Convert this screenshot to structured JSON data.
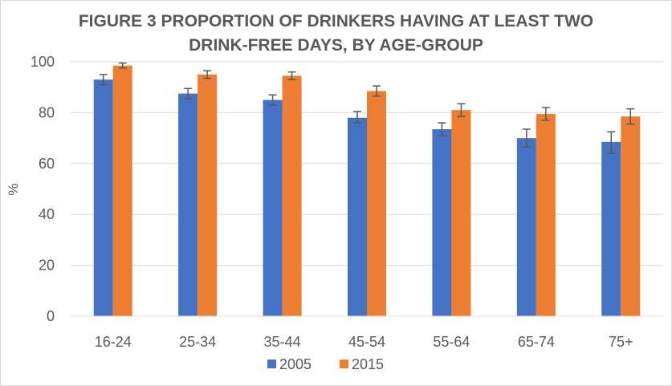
{
  "chart_data": {
    "type": "bar",
    "title_lines": [
      "FIGURE 3 PROPORTION OF DRINKERS HAVING AT LEAST TWO",
      "DRINK-FREE DAYS, BY AGE-GROUP"
    ],
    "xlabel": "",
    "ylabel": "%",
    "ylim": [
      0,
      100
    ],
    "yticks": [
      0,
      20,
      40,
      60,
      80,
      100
    ],
    "categories": [
      "16-24",
      "25-34",
      "35-44",
      "45-54",
      "55-64",
      "65-74",
      "75+"
    ],
    "series": [
      {
        "name": "2005",
        "color": "#4472c4",
        "values": [
          93,
          87.5,
          85,
          78,
          73.5,
          70,
          68.5
        ],
        "error": [
          [
            91,
            95
          ],
          [
            85.5,
            89.5
          ],
          [
            83,
            87
          ],
          [
            76,
            80.5
          ],
          [
            71,
            76
          ],
          [
            66.5,
            73.5
          ],
          [
            64,
            72.5
          ]
        ]
      },
      {
        "name": "2015",
        "color": "#ed7d31",
        "values": [
          98.5,
          95,
          94.5,
          88.5,
          81,
          79.5,
          78.5
        ],
        "error": [
          [
            97.5,
            99.5
          ],
          [
            93.5,
            96.5
          ],
          [
            93,
            96
          ],
          [
            86.5,
            90.5
          ],
          [
            78.5,
            83.5
          ],
          [
            77,
            82
          ],
          [
            75.5,
            81.5
          ]
        ]
      }
    ],
    "grid": true,
    "legend_position": "bottom",
    "error_bar_color": "#595959"
  }
}
